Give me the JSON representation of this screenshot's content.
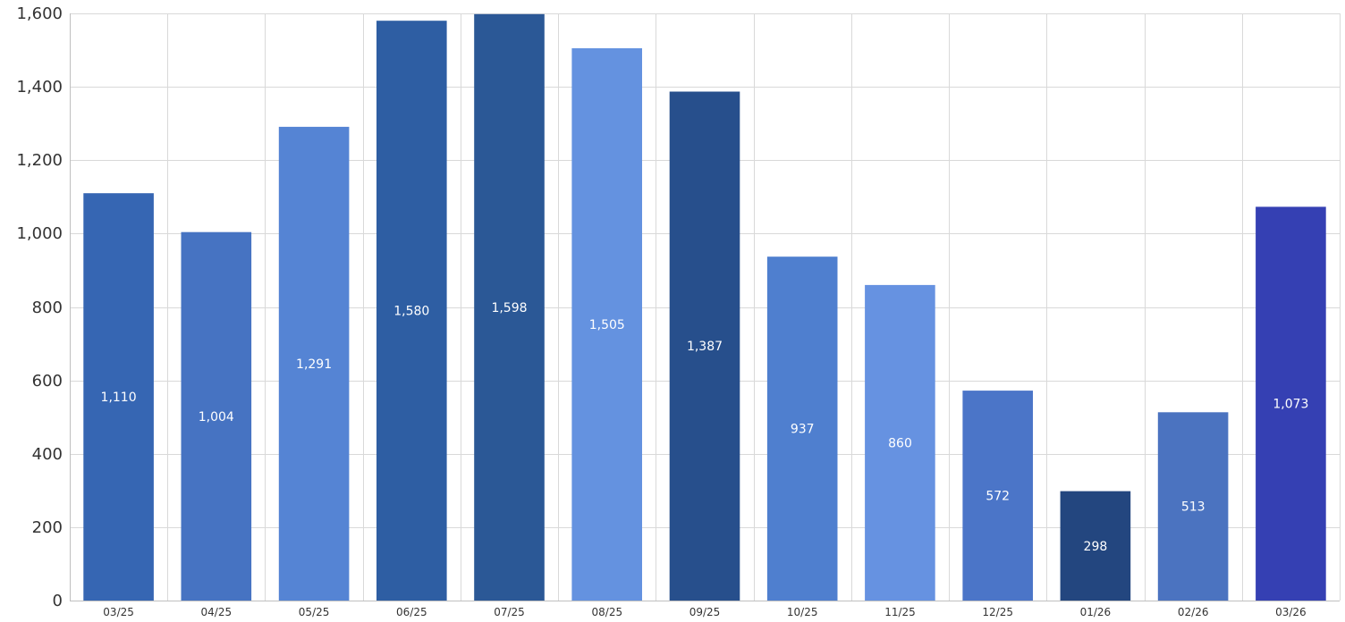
{
  "chart_data": {
    "type": "bar",
    "title": "",
    "xlabel": "",
    "ylabel": "",
    "categories": [
      "03/25",
      "04/25",
      "05/25",
      "06/25",
      "07/25",
      "08/25",
      "09/25",
      "10/25",
      "11/25",
      "12/25",
      "01/26",
      "02/26",
      "03/26"
    ],
    "values": [
      1110,
      1004,
      1291,
      1580,
      1598,
      1505,
      1387,
      937,
      860,
      572,
      298,
      513,
      1073
    ],
    "data_labels": [
      "1,110",
      "1,004",
      "1,291",
      "1,580",
      "1,598",
      "1,505",
      "1,387",
      "937",
      "860",
      "572",
      "298",
      "513",
      "1,073"
    ],
    "colors": [
      "#3666b3",
      "#4673c2",
      "#5584d4",
      "#2e5ea3",
      "#2b5896",
      "#6492e0",
      "#274f8c",
      "#4f7fcf",
      "#6692e1",
      "#4b75c8",
      "#23467f",
      "#4b73c0",
      "#3540b3"
    ],
    "ylim": [
      0,
      1600
    ],
    "yticks": [
      0,
      200,
      400,
      600,
      800,
      1000,
      1200,
      1400,
      1600
    ],
    "ytick_labels": [
      "0",
      "200",
      "400",
      "600",
      "800",
      "1,000",
      "1,200",
      "1,400",
      "1,600"
    ],
    "grid": true,
    "legend": "none"
  }
}
